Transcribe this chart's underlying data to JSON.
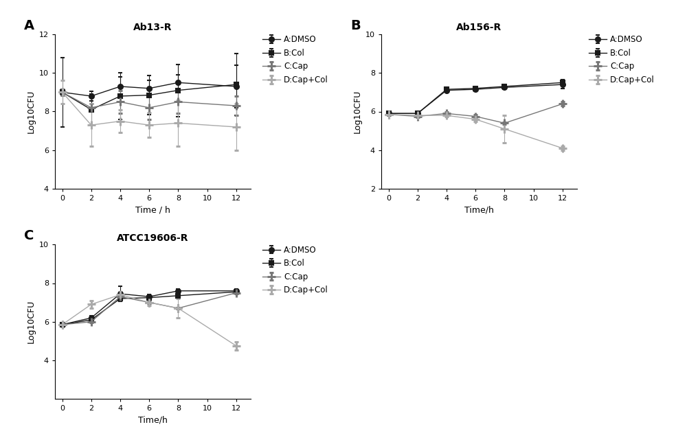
{
  "panels": [
    {
      "title": "Ab13-R",
      "label": "A",
      "xlabel": "Time / h",
      "ylabel": "Log10CFU",
      "ylim": [
        4,
        12
      ],
      "yticks": [
        4,
        6,
        8,
        10,
        12
      ],
      "xticks": [
        0,
        2,
        4,
        6,
        8,
        10,
        12
      ],
      "series": [
        {
          "name": "A:DMSO",
          "color": "#1a1a1a",
          "marker": "o",
          "linestyle": "-",
          "x": [
            0,
            2,
            4,
            6,
            8,
            12
          ],
          "y": [
            9.0,
            8.8,
            9.3,
            9.2,
            9.5,
            9.3
          ],
          "yerr": [
            0.15,
            0.25,
            0.5,
            0.4,
            0.4,
            1.1
          ]
        },
        {
          "name": "B:Col",
          "color": "#1a1a1a",
          "marker": "s",
          "linestyle": "-",
          "x": [
            0,
            2,
            4,
            6,
            8,
            12
          ],
          "y": [
            9.0,
            8.1,
            8.8,
            8.85,
            9.1,
            9.4
          ],
          "yerr": [
            1.8,
            0.8,
            1.2,
            1.0,
            1.35,
            1.6
          ]
        },
        {
          "name": "C:Cap",
          "color": "#777777",
          "marker": "+",
          "linestyle": "-",
          "x": [
            0,
            2,
            4,
            6,
            8,
            12
          ],
          "y": [
            9.0,
            8.2,
            8.5,
            8.2,
            8.5,
            8.3
          ],
          "yerr": [
            0.15,
            0.2,
            0.6,
            0.6,
            0.6,
            0.5
          ]
        },
        {
          "name": "D:Cap+Col",
          "color": "#aaaaaa",
          "marker": "+",
          "linestyle": "-",
          "x": [
            0,
            2,
            4,
            6,
            8,
            12
          ],
          "y": [
            9.0,
            7.3,
            7.5,
            7.3,
            7.4,
            7.2
          ],
          "yerr": [
            0.6,
            1.1,
            0.6,
            0.65,
            1.2,
            1.2
          ]
        }
      ]
    },
    {
      "title": "Ab156-R",
      "label": "B",
      "xlabel": "Time/h",
      "ylabel": "Log10CFU",
      "ylim": [
        2,
        10
      ],
      "yticks": [
        2,
        4,
        6,
        8,
        10
      ],
      "xticks": [
        0,
        2,
        4,
        6,
        8,
        10,
        12
      ],
      "series": [
        {
          "name": "A:DMSO",
          "color": "#1a1a1a",
          "marker": "o",
          "linestyle": "-",
          "x": [
            0,
            2,
            4,
            6,
            8,
            12
          ],
          "y": [
            5.9,
            5.9,
            7.1,
            7.15,
            7.25,
            7.4
          ],
          "yerr": [
            0.05,
            0.05,
            0.1,
            0.1,
            0.1,
            0.2
          ]
        },
        {
          "name": "B:Col",
          "color": "#1a1a1a",
          "marker": "s",
          "linestyle": "-",
          "x": [
            0,
            2,
            4,
            6,
            8,
            12
          ],
          "y": [
            5.9,
            5.9,
            7.15,
            7.2,
            7.3,
            7.5
          ],
          "yerr": [
            0.05,
            0.05,
            0.1,
            0.1,
            0.1,
            0.15
          ]
        },
        {
          "name": "C:Cap",
          "color": "#777777",
          "marker": "+",
          "linestyle": "-",
          "x": [
            0,
            2,
            4,
            6,
            8,
            12
          ],
          "y": [
            5.85,
            5.75,
            5.9,
            5.75,
            5.4,
            6.4
          ],
          "yerr": [
            0.05,
            0.05,
            0.1,
            0.1,
            0.05,
            0.1
          ]
        },
        {
          "name": "D:Cap+Col",
          "color": "#aaaaaa",
          "marker": "+",
          "linestyle": "-",
          "x": [
            0,
            2,
            4,
            6,
            8,
            12
          ],
          "y": [
            5.85,
            5.8,
            5.8,
            5.6,
            5.1,
            4.1
          ],
          "yerr": [
            0.05,
            0.05,
            0.05,
            0.1,
            0.7,
            0.1
          ]
        }
      ]
    },
    {
      "title": "ATCC19606-R",
      "label": "C",
      "xlabel": "Time/h",
      "ylabel": "Log10CFU",
      "ylim": [
        2,
        10
      ],
      "yticks": [
        4,
        6,
        8,
        10
      ],
      "xticks": [
        0,
        2,
        4,
        6,
        8,
        10,
        12
      ],
      "series": [
        {
          "name": "A:DMSO",
          "color": "#1a1a1a",
          "marker": "o",
          "linestyle": "-",
          "x": [
            0,
            2,
            4,
            6,
            8,
            12
          ],
          "y": [
            5.85,
            6.2,
            7.45,
            7.3,
            7.6,
            7.6
          ],
          "yerr": [
            0.05,
            0.1,
            0.4,
            0.1,
            0.1,
            0.1
          ]
        },
        {
          "name": "B:Col",
          "color": "#1a1a1a",
          "marker": "s",
          "linestyle": "-",
          "x": [
            0,
            2,
            4,
            6,
            8,
            12
          ],
          "y": [
            5.85,
            6.1,
            7.2,
            7.25,
            7.35,
            7.55
          ],
          "yerr": [
            0.05,
            0.05,
            0.1,
            0.1,
            0.05,
            0.1
          ]
        },
        {
          "name": "C:Cap",
          "color": "#777777",
          "marker": "+",
          "linestyle": "-",
          "x": [
            0,
            2,
            4,
            6,
            8,
            12
          ],
          "y": [
            5.85,
            6.0,
            7.3,
            7.0,
            6.7,
            7.5
          ],
          "yerr": [
            0.05,
            0.05,
            0.1,
            0.05,
            0.05,
            0.05
          ]
        },
        {
          "name": "D:Cap+Col",
          "color": "#aaaaaa",
          "marker": "+",
          "linestyle": "-",
          "x": [
            0,
            2,
            4,
            6,
            8,
            12
          ],
          "y": [
            5.85,
            6.9,
            7.4,
            7.0,
            6.7,
            4.75
          ],
          "yerr": [
            0.05,
            0.2,
            0.15,
            0.15,
            0.5,
            0.2
          ]
        }
      ]
    }
  ],
  "bg_color": "#ffffff",
  "font_size": 9,
  "title_font_size": 10,
  "label_fontsize": 14
}
